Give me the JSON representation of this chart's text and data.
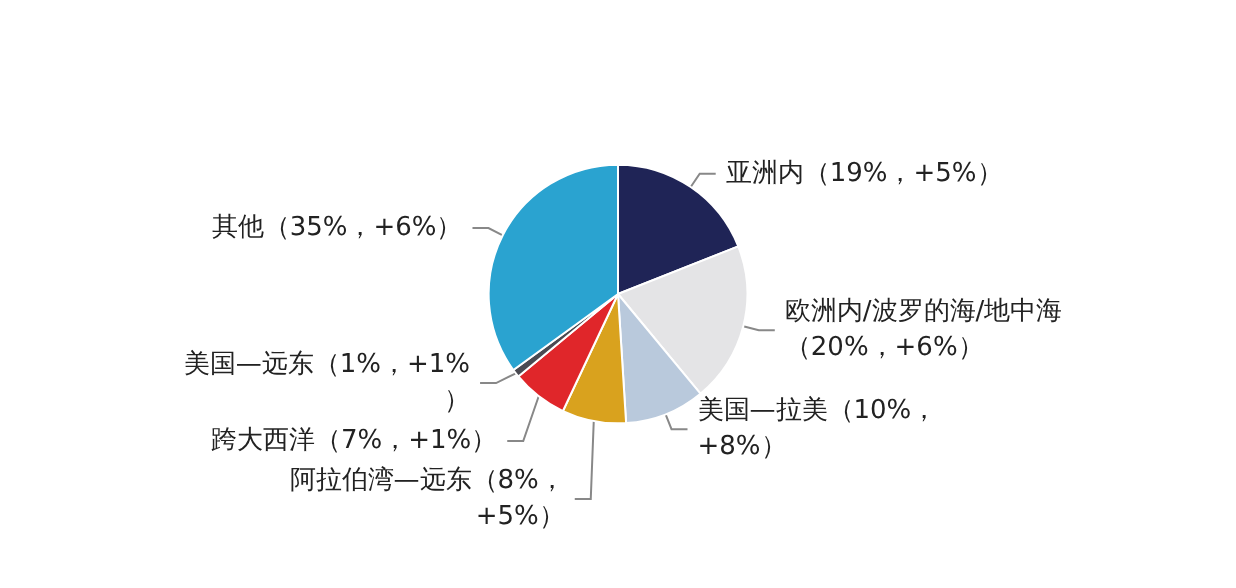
{
  "chart_data": {
    "type": "pie",
    "categories": [
      "亚洲内",
      "欧洲内/波罗的海/地中海",
      "美国—拉美",
      "阿拉伯湾—远东",
      "跨大西洋",
      "美国—远东",
      "其他"
    ],
    "values": [
      19,
      20,
      10,
      8,
      7,
      1,
      35
    ],
    "value_labels": [
      "（19%，+5%）",
      "（20%，+6%）",
      "（10%，+8%）",
      "（8%，+5%）",
      "（7%，+1%）",
      "（1%，+1%）",
      "（35%，+6%）"
    ],
    "colors": [
      "#1f2456",
      "#e4e4e6",
      "#b9c9dc",
      "#d9a21e",
      "#e0262a",
      "#4a4a52",
      "#2aa3d0"
    ],
    "legend": false
  }
}
